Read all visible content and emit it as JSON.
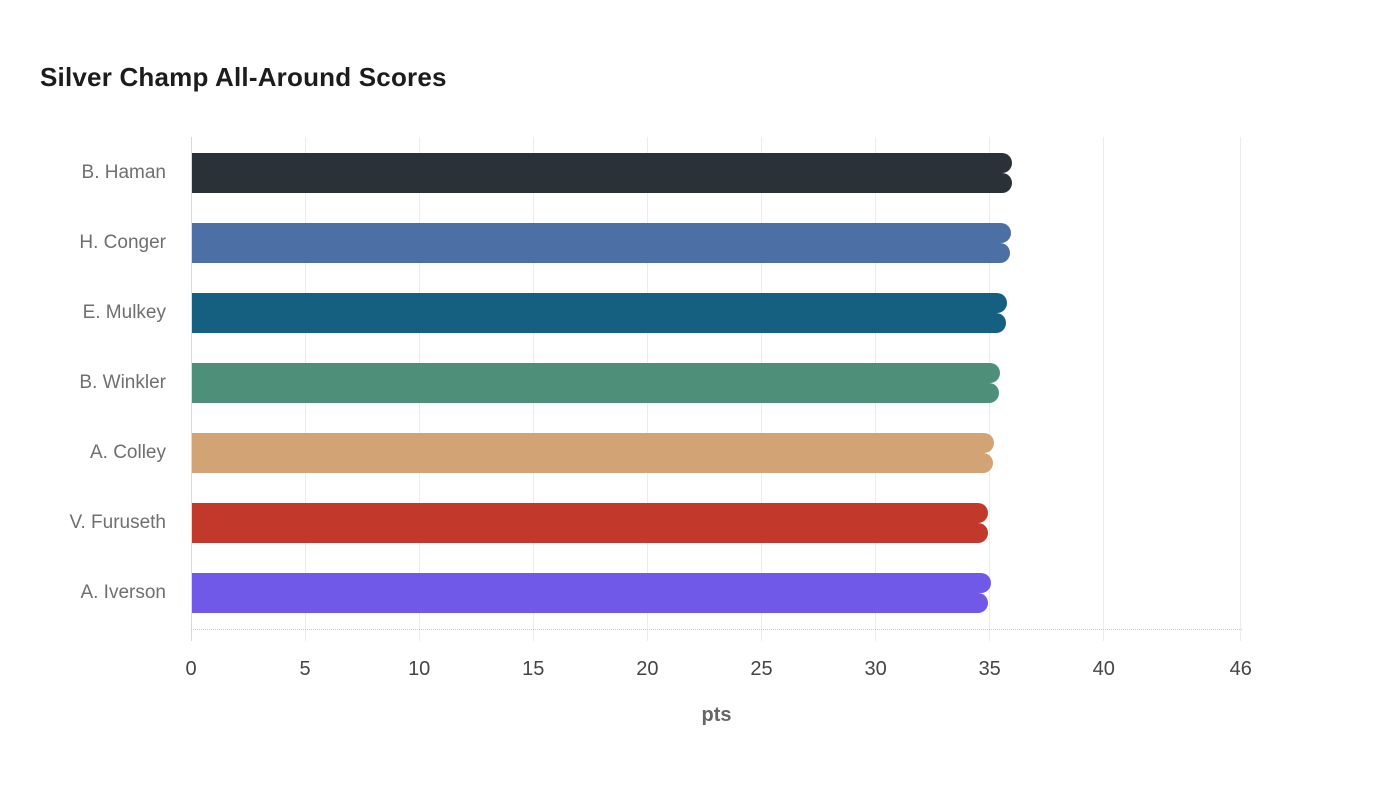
{
  "chart_data": {
    "type": "bar",
    "orientation": "horizontal",
    "title": "Silver Champ All-Around Scores",
    "xlabel": "pts",
    "ylabel": "",
    "categories": [
      "B. Haman",
      "H. Conger",
      "E. Mulkey",
      "B. Winkler",
      "A. Colley",
      "V. Furuseth",
      "A. Iverson"
    ],
    "values": [
      35.95,
      35.9,
      35.7,
      35.4,
      35.15,
      34.9,
      35.0
    ],
    "values_secondary": [
      35.95,
      35.85,
      35.65,
      35.35,
      35.1,
      34.9,
      34.9
    ],
    "bar_colors": [
      "#2b3237",
      "#4c70a6",
      "#155f81",
      "#4e8f7a",
      "#d2a475",
      "#c2392b",
      "#7059e8"
    ],
    "xlim": [
      0,
      46
    ],
    "xticks": [
      0,
      5,
      10,
      15,
      20,
      25,
      30,
      35,
      40,
      46
    ],
    "grid": true,
    "legend": false,
    "colors": {
      "title_text": "#1c1c1c",
      "category_label_text": "#6f6f6f",
      "tick_label_text": "#454545",
      "axis_title_text": "#666666",
      "gridline": "#ececec",
      "axis_line": "#d9d9d9",
      "background": "#ffffff"
    }
  }
}
